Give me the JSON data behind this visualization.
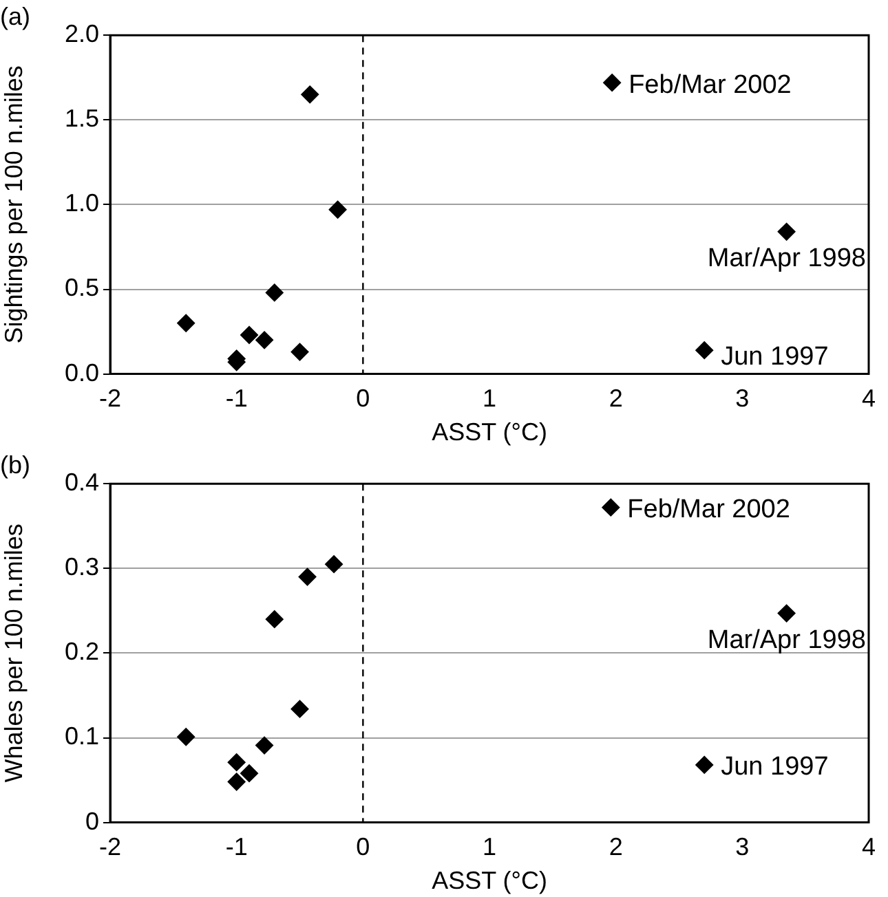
{
  "chart_data": [
    {
      "type": "scatter",
      "title": "(a)",
      "xlabel": "ASST (°C)",
      "ylabel": "Sightings per 100 n.miles",
      "x": [
        -1.4,
        -1.0,
        -1.0,
        -0.9,
        -0.78,
        -0.7,
        -0.5,
        -0.42,
        -0.2,
        1.97,
        3.35,
        2.7
      ],
      "series": [
        {
          "color": "#000000",
          "values": [
            0.3,
            0.09,
            0.07,
            0.23,
            0.2,
            0.48,
            0.13,
            1.65,
            0.97,
            1.72,
            0.84,
            0.14
          ]
        }
      ],
      "xlim": [
        -2,
        4
      ],
      "xticks": [
        -2,
        -1,
        0,
        1,
        2,
        3,
        4
      ],
      "ylim": [
        0,
        2
      ],
      "yticks": [
        {
          "value": 0,
          "label": "0.0"
        },
        0.5,
        {
          "value": 1,
          "label": "1.0"
        },
        1.5,
        {
          "value": 2,
          "label": "2.0"
        }
      ],
      "annotations": [
        {
          "text": "Feb/Mar 2002",
          "x": 1.97,
          "y": 1.72
        },
        {
          "text": "Mar/Apr 1998",
          "x": 3.35,
          "y": 0.84
        },
        {
          "text": "Jun 1997",
          "x": 2.7,
          "y": 0.14
        }
      ],
      "ref_lines": [
        {
          "axis": "x",
          "value": 0,
          "line_style": "dashed",
          "color": "#000000"
        }
      ],
      "grid": "y",
      "legend": false,
      "marker": "diamond"
    },
    {
      "type": "scatter",
      "title": "(b)",
      "xlabel": "ASST (°C)",
      "ylabel": "Whales per 100 n.miles",
      "x": [
        -1.4,
        -1.0,
        -1.0,
        -0.9,
        -0.78,
        -0.7,
        -0.5,
        -0.44,
        -0.23,
        1.96,
        3.35,
        2.7
      ],
      "series": [
        {
          "color": "#000000",
          "values": [
            0.101,
            0.071,
            0.048,
            0.058,
            0.091,
            0.24,
            0.134,
            0.29,
            0.305,
            0.372,
            0.247,
            0.068
          ]
        }
      ],
      "xlim": [
        -2,
        4
      ],
      "xticks": [
        -2,
        -1,
        0,
        1,
        2,
        3,
        4
      ],
      "ylim": [
        0,
        0.4
      ],
      "yticks": [
        0,
        0.1,
        0.2,
        0.3,
        0.4
      ],
      "annotations": [
        {
          "text": "Feb/Mar 2002",
          "x": 1.96,
          "y": 0.372
        },
        {
          "text": "Mar/Apr 1998",
          "x": 3.35,
          "y": 0.247
        },
        {
          "text": "Jun 1997",
          "x": 2.7,
          "y": 0.068
        }
      ],
      "ref_lines": [
        {
          "axis": "x",
          "value": 0,
          "line_style": "dashed",
          "color": "#000000"
        }
      ],
      "grid": "y",
      "legend": false,
      "marker": "diamond"
    }
  ]
}
